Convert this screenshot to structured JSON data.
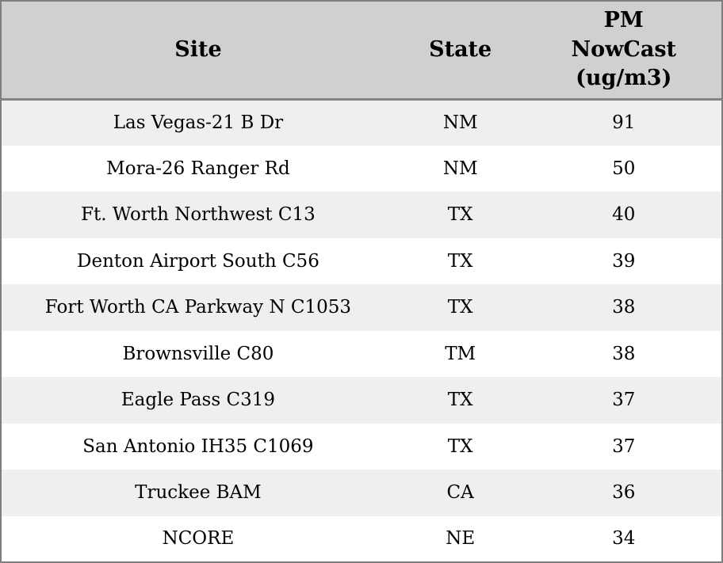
{
  "colors": {
    "header_bg": "#d0d0d0",
    "row_alt_bg": "#efefef",
    "row_bg": "#ffffff",
    "border": "#7e7e7e",
    "header_separator": "#828282",
    "text": "#000000"
  },
  "chart_data": {
    "type": "table",
    "columns": [
      {
        "id": "site",
        "label": "Site",
        "label_lines": [
          "Site"
        ]
      },
      {
        "id": "state",
        "label": "State",
        "label_lines": [
          "State"
        ]
      },
      {
        "id": "pm",
        "label": "PM NowCast (ug/m3)",
        "label_lines": [
          "PM",
          "NowCast",
          "(ug/m3)"
        ]
      }
    ],
    "rows": [
      {
        "site": "Las Vegas-21 B Dr",
        "state": "NM",
        "pm": "91"
      },
      {
        "site": "Mora-26 Ranger Rd",
        "state": "NM",
        "pm": "50"
      },
      {
        "site": "Ft. Worth Northwest C13",
        "state": "TX",
        "pm": "40"
      },
      {
        "site": "Denton Airport South C56",
        "state": "TX",
        "pm": "39"
      },
      {
        "site": "Fort Worth CA Parkway N C1053",
        "state": "TX",
        "pm": "38"
      },
      {
        "site": "Brownsville C80",
        "state": "TM",
        "pm": "38"
      },
      {
        "site": "Eagle Pass C319",
        "state": "TX",
        "pm": "37"
      },
      {
        "site": "San Antonio IH35 C1069",
        "state": "TX",
        "pm": "37"
      },
      {
        "site": "Truckee BAM",
        "state": "CA",
        "pm": "36"
      },
      {
        "site": "NCORE",
        "state": "NE",
        "pm": "34"
      }
    ]
  }
}
